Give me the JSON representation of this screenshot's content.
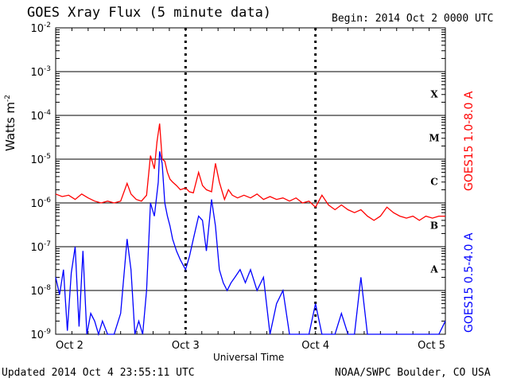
{
  "header": {
    "title": "GOES Xray Flux (5 minute data)",
    "begin": "Begin:  2014 Oct 2 0000 UTC"
  },
  "footer": {
    "updated": "Updated 2014 Oct  4 23:55:11 UTC",
    "credit": "NOAA/SWPC Boulder, CO USA"
  },
  "axes": {
    "ylabel": "Watts m",
    "ylabel_sup": "-2",
    "xlabel": "Universal Time"
  },
  "colors": {
    "long": "#ff0000",
    "short": "#0000ff",
    "grid": "#000000"
  },
  "chart_data": {
    "type": "line",
    "title": "GOES Xray Flux (5 minute data)",
    "xlabel": "Universal Time",
    "ylabel": "Watts m-2",
    "yscale": "log",
    "ylim": [
      1e-09,
      0.01
    ],
    "xlim": [
      0,
      3
    ],
    "x_ticks": [
      {
        "value": 0,
        "label": "Oct 2"
      },
      {
        "value": 1,
        "label": "Oct 3"
      },
      {
        "value": 2,
        "label": "Oct 4"
      },
      {
        "value": 3,
        "label": "Oct 5"
      }
    ],
    "y_ticks": [
      {
        "exp": -9,
        "label": "10",
        "sup": "-9"
      },
      {
        "exp": -8,
        "label": "10",
        "sup": "-8"
      },
      {
        "exp": -7,
        "label": "10",
        "sup": "-7"
      },
      {
        "exp": -6,
        "label": "10",
        "sup": "-6"
      },
      {
        "exp": -5,
        "label": "10",
        "sup": "-5"
      },
      {
        "exp": -4,
        "label": "10",
        "sup": "-4"
      },
      {
        "exp": -3,
        "label": "10",
        "sup": "-3"
      },
      {
        "exp": -2,
        "label": "10",
        "sup": "-2"
      }
    ],
    "flare_classes": [
      {
        "label": "A",
        "exp": -7.5
      },
      {
        "label": "B",
        "exp": -6.5
      },
      {
        "label": "C",
        "exp": -5.5
      },
      {
        "label": "M",
        "exp": -4.5
      },
      {
        "label": "X",
        "exp": -3.5
      }
    ],
    "series": [
      {
        "name": "GOES15 1.0-8.0 A",
        "color": "#ff0000",
        "x": [
          0.0,
          0.05,
          0.1,
          0.15,
          0.2,
          0.25,
          0.3,
          0.35,
          0.4,
          0.45,
          0.5,
          0.55,
          0.58,
          0.62,
          0.66,
          0.7,
          0.73,
          0.76,
          0.78,
          0.8,
          0.82,
          0.84,
          0.86,
          0.88,
          0.9,
          0.93,
          0.96,
          1.0,
          1.03,
          1.06,
          1.1,
          1.13,
          1.16,
          1.2,
          1.23,
          1.26,
          1.3,
          1.33,
          1.36,
          1.4,
          1.45,
          1.5,
          1.55,
          1.6,
          1.65,
          1.7,
          1.75,
          1.8,
          1.85,
          1.9,
          1.95,
          2.0,
          2.05,
          2.1,
          2.15,
          2.2,
          2.25,
          2.3,
          2.35,
          2.4,
          2.45,
          2.5,
          2.55,
          2.6,
          2.65,
          2.7,
          2.75,
          2.8,
          2.85,
          2.9,
          2.95,
          3.0
        ],
        "y": [
          1.6e-06,
          1.4e-06,
          1.5e-06,
          1.2e-06,
          1.6e-06,
          1.3e-06,
          1.1e-06,
          1e-06,
          1.1e-06,
          1e-06,
          1.1e-06,
          2.8e-06,
          1.6e-06,
          1.2e-06,
          1.1e-06,
          1.5e-06,
          1.2e-05,
          6e-06,
          2.5e-05,
          6.5e-05,
          1e-05,
          9e-06,
          5e-06,
          3.5e-06,
          3e-06,
          2.5e-06,
          2e-06,
          2.2e-06,
          1.8e-06,
          1.7e-06,
          5e-06,
          2.5e-06,
          2e-06,
          1.8e-06,
          8e-06,
          3e-06,
          1.2e-06,
          2e-06,
          1.5e-06,
          1.3e-06,
          1.5e-06,
          1.3e-06,
          1.6e-06,
          1.2e-06,
          1.4e-06,
          1.2e-06,
          1.3e-06,
          1.1e-06,
          1.3e-06,
          1e-06,
          1.1e-06,
          8e-07,
          1.5e-06,
          9e-07,
          7e-07,
          9e-07,
          7e-07,
          6e-07,
          7e-07,
          5e-07,
          4e-07,
          5e-07,
          8e-07,
          6e-07,
          5e-07,
          4.5e-07,
          5e-07,
          4e-07,
          5e-07,
          4.5e-07,
          5e-07,
          5e-07
        ]
      },
      {
        "name": "GOES15 0.5-4.0 A",
        "color": "#0000ff",
        "x": [
          0.0,
          0.03,
          0.06,
          0.09,
          0.12,
          0.15,
          0.18,
          0.21,
          0.24,
          0.27,
          0.3,
          0.33,
          0.36,
          0.4,
          0.45,
          0.5,
          0.55,
          0.58,
          0.61,
          0.64,
          0.67,
          0.7,
          0.73,
          0.76,
          0.79,
          0.8,
          0.82,
          0.84,
          0.86,
          0.88,
          0.9,
          0.93,
          0.96,
          1.0,
          1.03,
          1.06,
          1.1,
          1.13,
          1.16,
          1.2,
          1.23,
          1.26,
          1.29,
          1.32,
          1.35,
          1.38,
          1.42,
          1.46,
          1.5,
          1.55,
          1.6,
          1.65,
          1.7,
          1.75,
          1.8,
          1.85,
          1.9,
          1.95,
          2.0,
          2.05,
          2.1,
          2.15,
          2.2,
          2.25,
          2.3,
          2.35,
          2.4,
          2.45,
          2.5,
          2.55,
          2.6,
          2.65,
          2.7,
          2.75,
          2.8,
          2.85,
          2.9,
          2.95,
          3.0
        ],
        "y": [
          2e-08,
          8e-09,
          3e-08,
          1.2e-09,
          2.5e-08,
          1e-07,
          1.5e-09,
          8e-08,
          1e-09,
          3e-09,
          2e-09,
          1e-09,
          2e-09,
          1e-09,
          1e-09,
          3e-09,
          1.5e-07,
          3e-08,
          1e-09,
          2e-09,
          1e-09,
          1e-08,
          1e-06,
          5e-07,
          3e-06,
          1.5e-05,
          8e-06,
          1e-06,
          5e-07,
          3e-07,
          1.5e-07,
          8e-08,
          5e-08,
          3e-08,
          6e-08,
          1.5e-07,
          5e-07,
          4e-07,
          8e-08,
          1.2e-06,
          3e-07,
          3e-08,
          1.5e-08,
          1e-08,
          1.5e-08,
          2e-08,
          3e-08,
          1.5e-08,
          3e-08,
          1e-08,
          2e-08,
          1e-09,
          5e-09,
          1e-08,
          1e-09,
          1e-09,
          1e-09,
          1e-09,
          5e-09,
          1e-09,
          1e-09,
          1e-09,
          3e-09,
          1e-09,
          1e-09,
          2e-08,
          1e-09,
          1e-09,
          1e-09,
          1e-09,
          1e-09,
          1e-09,
          1e-09,
          1e-09,
          1e-09,
          1e-09,
          1e-09,
          1e-09,
          2e-09
        ]
      }
    ]
  }
}
